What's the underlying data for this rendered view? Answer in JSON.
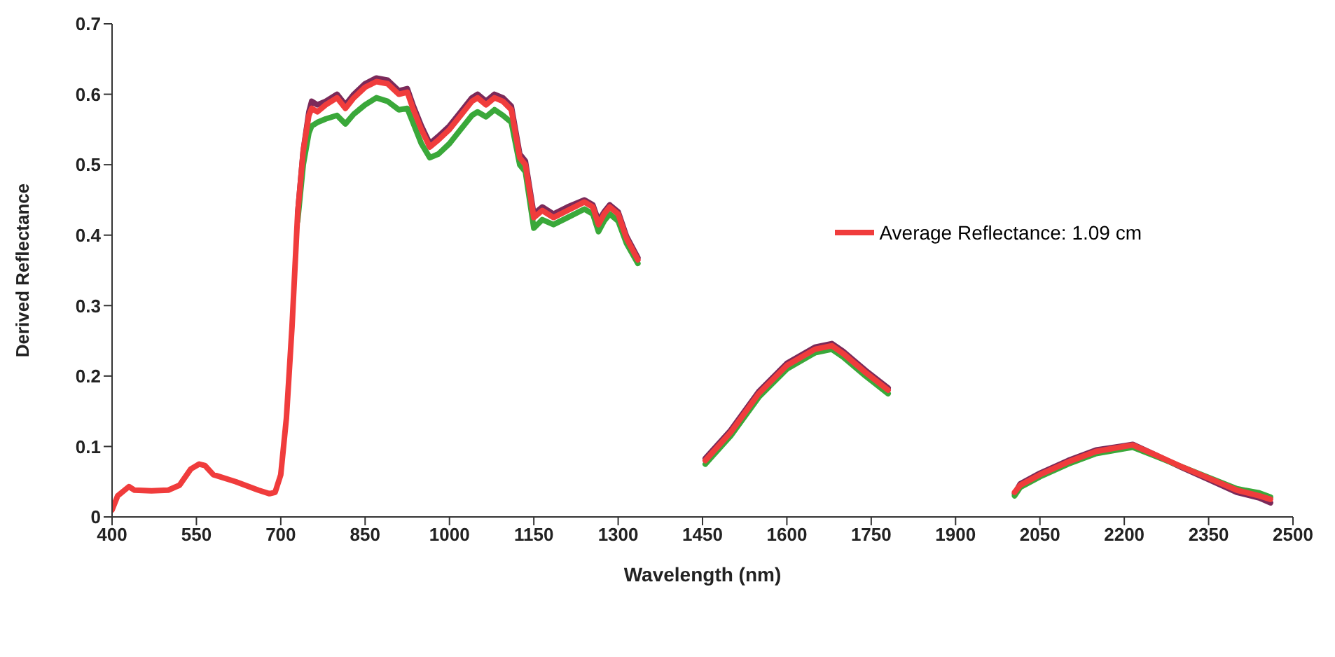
{
  "chart_data": {
    "type": "line",
    "xlabel": "Wavelength (nm)",
    "ylabel": "Derived Reflectance",
    "x": [
      400,
      410,
      430,
      440,
      470,
      500,
      520,
      540,
      555,
      565,
      580,
      620,
      660,
      680,
      690,
      700,
      710,
      720,
      730,
      740,
      750,
      755,
      765,
      780,
      800,
      815,
      830,
      850,
      870,
      890,
      910,
      925,
      935,
      950,
      965,
      980,
      1000,
      1020,
      1040,
      1050,
      1065,
      1080,
      1095,
      1110,
      1125,
      1135,
      1150,
      1165,
      1185,
      1210,
      1240,
      1255,
      1265,
      1275,
      1285,
      1300,
      1315,
      1335,
      1400,
      1455,
      1500,
      1550,
      1600,
      1650,
      1680,
      1700,
      1740,
      1780,
      1900,
      2005,
      2015,
      2050,
      2100,
      2150,
      2200,
      2215,
      2250,
      2300,
      2350,
      2400,
      2440,
      2460
    ],
    "series": [
      {
        "color": "#7a2a5a",
        "values": [
          null,
          null,
          null,
          null,
          null,
          null,
          null,
          null,
          null,
          null,
          null,
          null,
          null,
          null,
          null,
          null,
          null,
          null,
          0.43,
          0.52,
          0.575,
          0.59,
          0.585,
          0.59,
          0.6,
          0.585,
          0.6,
          0.615,
          0.623,
          0.62,
          0.605,
          0.608,
          0.585,
          0.555,
          0.53,
          0.54,
          0.555,
          0.575,
          0.595,
          0.6,
          0.59,
          0.6,
          0.595,
          0.583,
          0.515,
          0.505,
          0.43,
          0.44,
          0.43,
          0.44,
          0.45,
          0.443,
          0.42,
          0.433,
          0.443,
          0.433,
          0.398,
          0.368,
          null,
          0.083,
          0.123,
          0.178,
          0.218,
          0.241,
          0.246,
          0.235,
          0.208,
          0.183,
          null,
          0.033,
          0.047,
          0.062,
          0.08,
          0.095,
          0.101,
          0.103,
          0.09,
          0.071,
          0.053,
          0.035,
          0.027,
          0.02
        ]
      },
      {
        "color": "#3aa83a",
        "values": [
          null,
          null,
          null,
          null,
          null,
          null,
          null,
          null,
          null,
          null,
          null,
          null,
          null,
          null,
          null,
          null,
          null,
          null,
          0.42,
          0.5,
          0.545,
          0.555,
          0.56,
          0.565,
          0.57,
          0.558,
          0.572,
          0.585,
          0.595,
          0.59,
          0.578,
          0.58,
          0.56,
          0.53,
          0.51,
          0.515,
          0.53,
          0.55,
          0.57,
          0.575,
          0.568,
          0.578,
          0.57,
          0.56,
          0.5,
          0.49,
          0.41,
          0.422,
          0.415,
          0.425,
          0.437,
          0.43,
          0.405,
          0.42,
          0.43,
          0.42,
          0.388,
          0.36,
          null,
          0.075,
          0.115,
          0.17,
          0.21,
          0.233,
          0.238,
          0.227,
          0.2,
          0.175,
          null,
          0.03,
          0.042,
          0.057,
          0.075,
          0.09,
          0.097,
          0.099,
          0.088,
          0.072,
          0.056,
          0.04,
          0.034,
          0.028
        ]
      },
      {
        "name": "Average Reflectance: 1.09 cm",
        "color": "#f03c3c",
        "values": [
          0.01,
          0.03,
          0.043,
          0.038,
          0.037,
          0.038,
          0.045,
          0.068,
          0.075,
          0.073,
          0.06,
          0.05,
          0.038,
          0.033,
          0.035,
          0.06,
          0.14,
          0.27,
          0.43,
          0.52,
          0.57,
          0.58,
          0.575,
          0.585,
          0.595,
          0.58,
          0.595,
          0.61,
          0.618,
          0.615,
          0.6,
          0.603,
          0.58,
          0.55,
          0.525,
          0.535,
          0.55,
          0.57,
          0.59,
          0.595,
          0.585,
          0.595,
          0.59,
          0.578,
          0.51,
          0.5,
          0.425,
          0.435,
          0.425,
          0.435,
          0.447,
          0.44,
          0.415,
          0.43,
          0.44,
          0.43,
          0.395,
          0.365,
          null,
          0.08,
          0.12,
          0.175,
          0.215,
          0.238,
          0.243,
          0.232,
          0.205,
          0.18,
          null,
          0.035,
          0.045,
          0.06,
          0.078,
          0.093,
          0.1,
          0.102,
          0.09,
          0.072,
          0.055,
          0.038,
          0.03,
          0.025
        ]
      }
    ],
    "xlim": [
      400,
      2500
    ],
    "xticks": [
      400,
      550,
      700,
      850,
      1000,
      1150,
      1300,
      1450,
      1600,
      1750,
      1900,
      2050,
      2200,
      2350,
      2500
    ],
    "ylim": [
      0,
      0.7
    ],
    "yticks": [
      0,
      0.1,
      0.2,
      0.3,
      0.4,
      0.5,
      0.6,
      0.7
    ],
    "grid": false,
    "legend": "right",
    "marker": "none",
    "line_style": "solid"
  }
}
